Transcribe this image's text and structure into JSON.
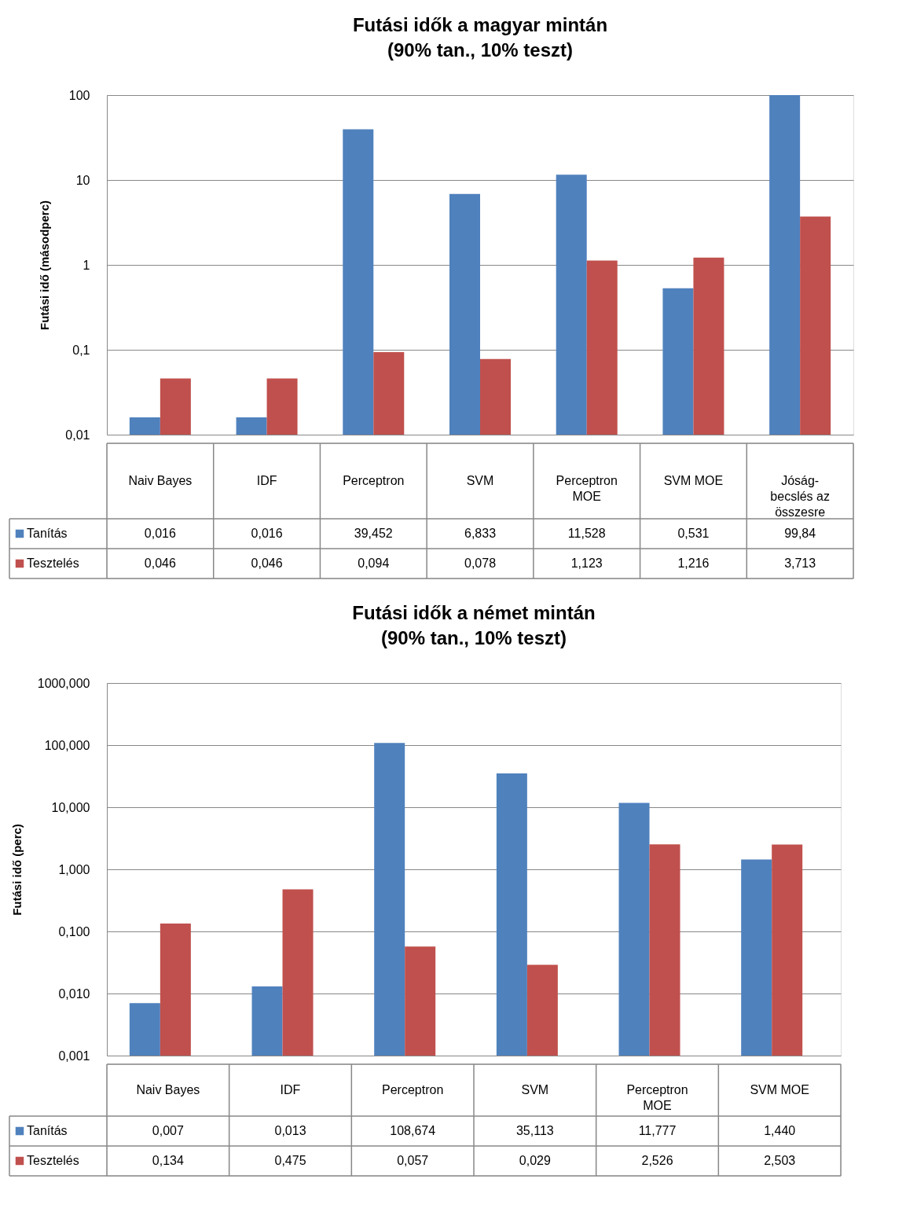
{
  "chart_data": [
    {
      "type": "bar",
      "title": "Futási idők a magyar mintán",
      "subtitle": "(90% tan., 10% teszt)",
      "ylabel": "Futási idő (másodperc)",
      "log": true,
      "grid": "y",
      "legend": "bottom left",
      "ylim": [
        0.01,
        100
      ],
      "yticks": [
        {
          "value": 0.01,
          "label": "0,01"
        },
        {
          "value": 0.1,
          "label": "0,1"
        },
        1,
        10,
        100
      ],
      "categories": [
        "Naiv Bayes",
        "IDF",
        "Perceptron",
        "SVM",
        "Perceptron MOE",
        "SVM MOE",
        "Jóság-becslés az összesre"
      ],
      "series": [
        {
          "name": "Tanítás",
          "color": "#4f81bd",
          "values": [
            0.016,
            0.016,
            39.452,
            6.833,
            11.528,
            0.531,
            99.84
          ],
          "value_labels": [
            "0,016",
            "0,016",
            "39,452",
            "6,833",
            "11,528",
            "0,531",
            "99,84"
          ]
        },
        {
          "name": "Tesztelés",
          "color": "#c0504d",
          "values": [
            0.046,
            0.046,
            0.094,
            0.078,
            1.123,
            1.216,
            3.713
          ],
          "value_labels": [
            "0,046",
            "0,046",
            "0,094",
            "0,078",
            "1,123",
            "1,216",
            "3,713"
          ]
        }
      ]
    },
    {
      "type": "bar",
      "title": "Futási idők a német mintán",
      "subtitle": "(90% tan., 10% teszt)",
      "ylabel": "Futási idő (perc)",
      "log": true,
      "grid": "y",
      "legend": "bottom left",
      "ylim": [
        0.001,
        1000
      ],
      "yticks": [
        {
          "value": 0.001,
          "label": "0,001"
        },
        {
          "value": 0.01,
          "label": "0,010"
        },
        {
          "value": 0.1,
          "label": "0,100"
        },
        {
          "value": 1,
          "label": "1,000"
        },
        {
          "value": 10,
          "label": "10,000"
        },
        {
          "value": 100,
          "label": "100,000"
        },
        {
          "value": 1000,
          "label": "1000,000"
        }
      ],
      "categories": [
        "Naiv Bayes",
        "IDF",
        "Perceptron",
        "SVM",
        "Perceptron MOE",
        "SVM MOE"
      ],
      "series": [
        {
          "name": "Tanítás",
          "color": "#4f81bd",
          "values": [
            0.007,
            0.013,
            108.674,
            35.113,
            11.777,
            1.44
          ],
          "value_labels": [
            "0,007",
            "0,013",
            "108,674",
            "35,113",
            "11,777",
            "1,440"
          ]
        },
        {
          "name": "Tesztelés",
          "color": "#c0504d",
          "values": [
            0.134,
            0.475,
            0.057,
            0.029,
            2.526,
            2.503
          ],
          "value_labels": [
            "0,134",
            "0,475",
            "0,057",
            "0,029",
            "2,526",
            "2,503"
          ]
        }
      ]
    }
  ]
}
